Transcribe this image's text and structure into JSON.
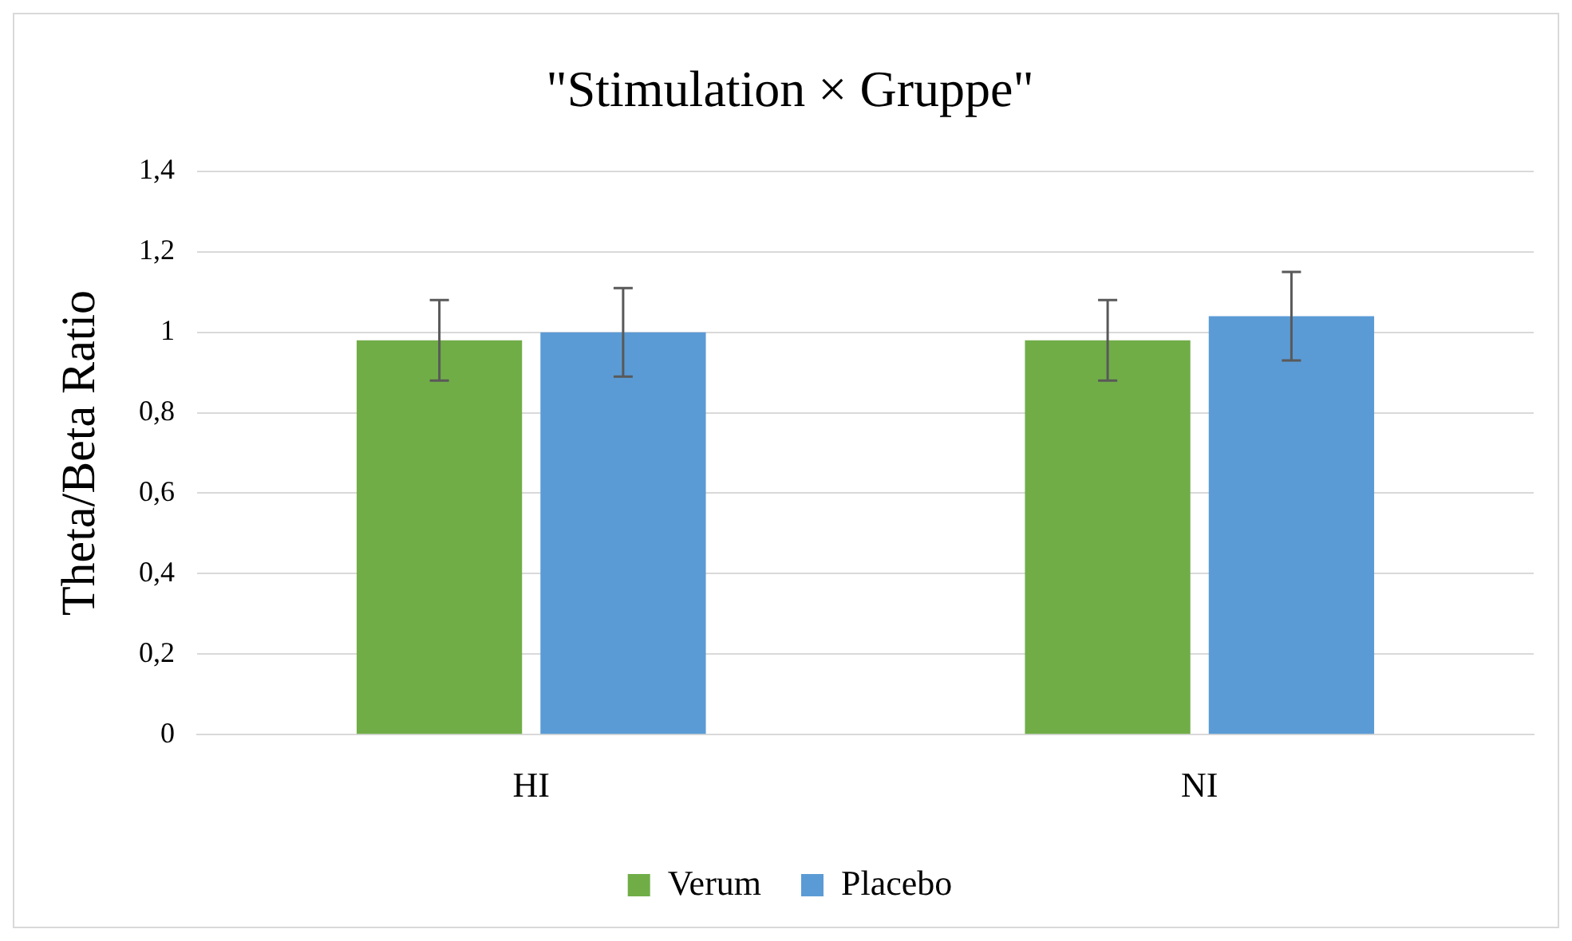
{
  "chart_data": {
    "type": "bar",
    "title": "\"Stimulation × Gruppe\"",
    "ylabel": "Theta/Beta Ratio",
    "categories": [
      "HI",
      "NI"
    ],
    "series": [
      {
        "name": "Verum",
        "color": "#70ad47",
        "values": [
          0.98,
          0.98
        ],
        "errors": [
          0.1,
          0.1
        ]
      },
      {
        "name": "Placebo",
        "color": "#5b9bd5",
        "values": [
          1.0,
          1.04
        ],
        "errors": [
          0.11,
          0.11
        ]
      }
    ],
    "ylim": [
      0,
      1.4
    ],
    "yticks": [
      0,
      {
        "value": 0.2,
        "label": "0,2"
      },
      {
        "value": 0.4,
        "label": "0,4"
      },
      {
        "value": 0.6,
        "label": "0,6"
      },
      {
        "value": 0.8,
        "label": "0,8"
      },
      1,
      {
        "value": 1.2,
        "label": "1,2"
      },
      {
        "value": 1.4,
        "label": "1,4"
      }
    ],
    "grid": "y",
    "legend": "bottom"
  }
}
